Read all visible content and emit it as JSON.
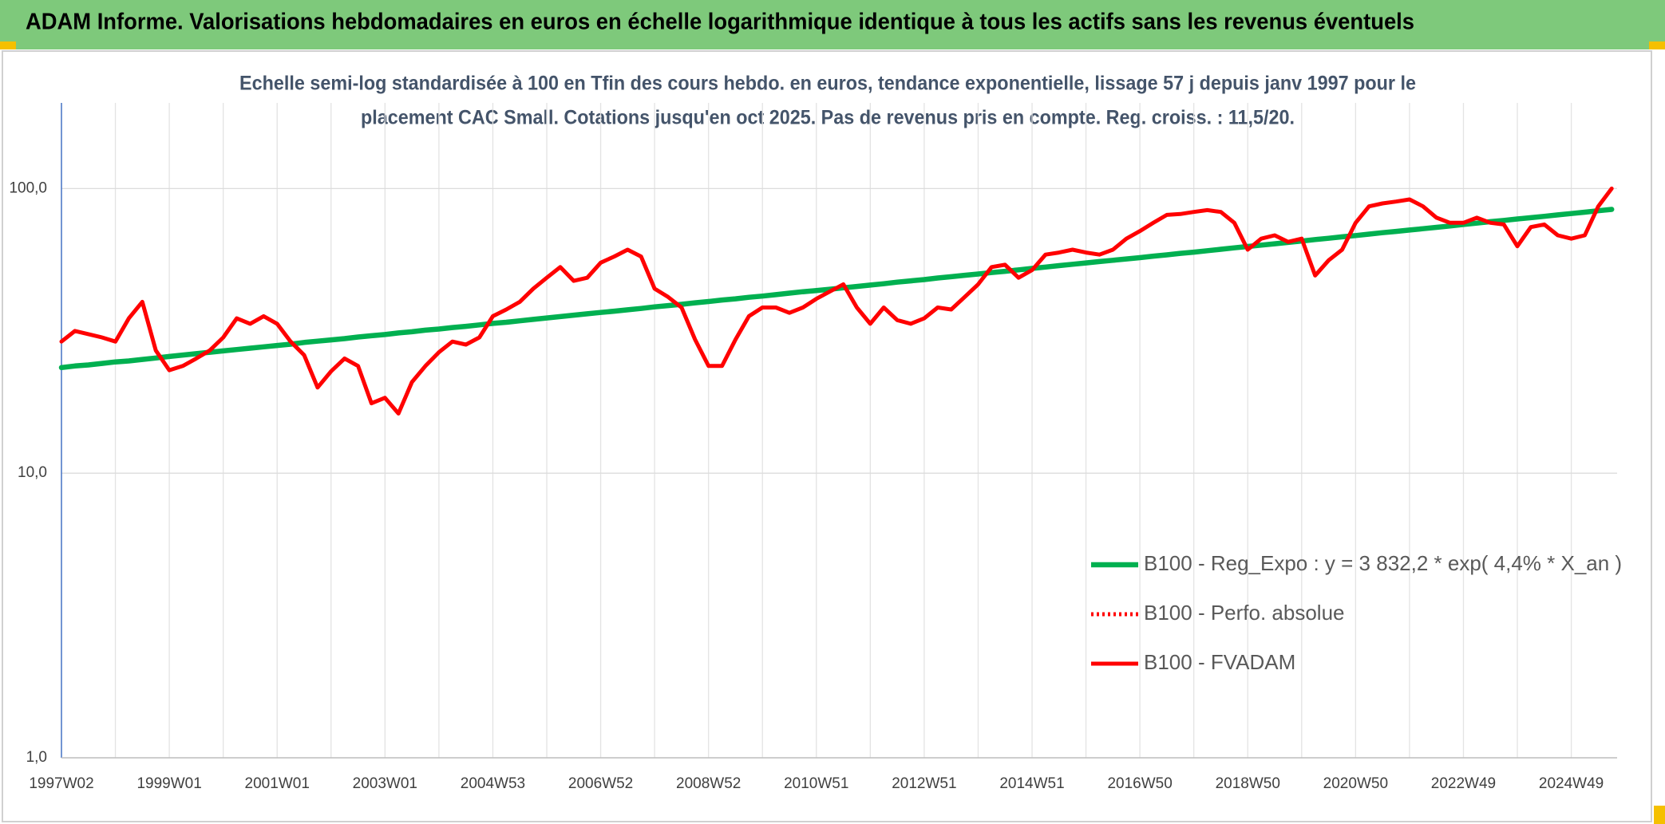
{
  "chart_data": {
    "type": "line",
    "title": "ADAM Informe. Valorisations hebdomadaires en euros en échelle logarithmique identique à tous les actifs sans les revenus éventuels",
    "subtitle": [
      "Echelle semi-log standardisée à 100 en Tfin des cours hebdo. en euros, tendance exponentielle, lissage 57 j depuis janv 1997 pour le",
      "placement CAC Small. Cotations jusqu'en oct 2025. Pas de revenus pris en compte. Reg. croiss. : 11,5/20."
    ],
    "log_scale": true,
    "grid": true,
    "legend_position": "lower right",
    "ylim": [
      1,
      200
    ],
    "yticks": [
      {
        "value": 1,
        "label": "1,0"
      },
      {
        "value": 10,
        "label": "10,0"
      },
      {
        "value": 100,
        "label": "100,0"
      }
    ],
    "categories": [
      "1997W02",
      null,
      null,
      null,
      null,
      null,
      null,
      null,
      "1999W01",
      null,
      null,
      null,
      null,
      null,
      null,
      null,
      "2001W01",
      null,
      null,
      null,
      null,
      null,
      null,
      null,
      "2003W01",
      null,
      null,
      null,
      null,
      null,
      null,
      null,
      "2004W53",
      null,
      null,
      null,
      null,
      null,
      null,
      null,
      "2006W52",
      null,
      null,
      null,
      null,
      null,
      null,
      null,
      "2008W52",
      null,
      null,
      null,
      null,
      null,
      null,
      null,
      "2010W51",
      null,
      null,
      null,
      null,
      null,
      null,
      null,
      "2012W51",
      null,
      null,
      null,
      null,
      null,
      null,
      null,
      "2014W51",
      null,
      null,
      null,
      null,
      null,
      null,
      null,
      "2016W50",
      null,
      null,
      null,
      null,
      null,
      null,
      null,
      "2018W50",
      null,
      null,
      null,
      null,
      null,
      null,
      null,
      "2020W50",
      null,
      null,
      null,
      null,
      null,
      null,
      null,
      "2022W49",
      null,
      null,
      null,
      null,
      null,
      null,
      null,
      "2024W49",
      null,
      null,
      null
    ],
    "series": [
      {
        "name": "B100 - Reg_Expo : y = 3 832,2 * exp( 4,4% *  X_an )",
        "color": "#00b050",
        "line_style": "solid",
        "values": [
          23.5,
          23.8,
          24.0,
          24.3,
          24.6,
          24.8,
          25.1,
          25.4,
          25.7,
          26.0,
          26.3,
          26.6,
          26.9,
          27.2,
          27.5,
          27.8,
          28.1,
          28.4,
          28.8,
          29.1,
          29.4,
          29.7,
          30.1,
          30.4,
          30.7,
          31.1,
          31.4,
          31.8,
          32.1,
          32.5,
          32.8,
          33.2,
          33.6,
          33.9,
          34.3,
          34.7,
          35.1,
          35.5,
          35.9,
          36.3,
          36.7,
          37.1,
          37.5,
          37.9,
          38.4,
          38.8,
          39.2,
          39.7,
          40.1,
          40.6,
          41.0,
          41.5,
          41.9,
          42.4,
          42.9,
          43.4,
          43.8,
          44.3,
          44.8,
          45.3,
          45.8,
          46.3,
          46.9,
          47.4,
          47.9,
          48.5,
          49.0,
          49.6,
          50.1,
          50.7,
          51.2,
          51.8,
          52.4,
          53.0,
          53.6,
          54.2,
          54.8,
          55.4,
          56.0,
          56.6,
          57.2,
          57.9,
          58.5,
          59.2,
          59.8,
          60.5,
          61.2,
          61.9,
          62.6,
          63.3,
          64.0,
          64.7,
          65.4,
          66.2,
          66.9,
          67.7,
          68.4,
          69.2,
          70.0,
          70.7,
          71.5,
          72.3,
          73.1,
          73.9,
          74.8,
          75.6,
          76.5,
          77.3,
          78.2,
          79.0,
          79.9,
          80.8,
          81.7,
          82.6,
          83.6,
          84.5
        ]
      },
      {
        "name": "B100 - Perfo. absolue",
        "color": "#ff0000",
        "line_style": "dotted",
        "values": [
          null,
          null,
          null,
          null,
          null,
          null,
          null,
          null,
          null,
          null,
          null,
          null,
          null,
          null,
          null,
          null,
          null,
          null,
          null,
          null,
          null,
          null,
          null,
          null,
          null,
          null,
          null,
          null,
          null,
          null,
          null,
          null,
          null,
          null,
          null,
          null,
          null,
          null,
          null,
          null,
          null,
          null,
          null,
          null,
          null,
          null,
          null,
          null,
          null,
          null,
          null,
          null,
          null,
          null,
          null,
          null,
          null,
          null,
          null,
          null,
          null,
          null,
          null,
          null,
          null,
          null,
          null,
          null,
          null,
          null,
          null,
          null,
          null,
          null,
          null,
          null,
          null,
          null,
          null,
          null,
          null,
          null,
          null,
          null,
          null,
          null,
          null,
          null,
          null,
          null,
          null,
          null,
          null,
          null,
          null,
          null,
          null,
          null,
          null,
          null,
          null,
          null,
          null,
          null,
          null,
          null,
          null,
          null,
          null,
          null,
          null,
          null,
          null,
          null,
          null,
          null
        ]
      },
      {
        "name": "B100 - FVADAM",
        "color": "#ff0000",
        "line_style": "solid",
        "values": [
          29.0,
          31.6,
          30.8,
          30.0,
          29.0,
          35.0,
          40.0,
          27.0,
          23.0,
          23.8,
          25.3,
          27.0,
          30.0,
          35.0,
          33.5,
          35.6,
          33.5,
          29.0,
          26.0,
          20.0,
          22.8,
          25.3,
          23.8,
          17.6,
          18.4,
          16.2,
          20.9,
          23.8,
          26.6,
          29.0,
          28.3,
          30.0,
          35.6,
          37.6,
          40.0,
          44.5,
          48.6,
          53.0,
          47.4,
          48.6,
          54.9,
          57.7,
          61.0,
          57.7,
          44.5,
          41.6,
          38.2,
          29.5,
          23.8,
          23.8,
          29.5,
          35.6,
          38.2,
          38.2,
          36.6,
          38.2,
          41.0,
          43.5,
          46.1,
          38.2,
          33.5,
          38.2,
          34.5,
          33.5,
          35.0,
          38.2,
          37.6,
          41.6,
          46.1,
          53.0,
          54.0,
          48.6,
          51.7,
          58.6,
          59.6,
          61.0,
          59.6,
          58.6,
          61.0,
          66.7,
          70.9,
          75.8,
          80.8,
          81.4,
          82.8,
          84.0,
          82.8,
          75.8,
          61.0,
          66.7,
          68.5,
          65.0,
          66.7,
          49.5,
          56.0,
          61.0,
          75.8,
          86.6,
          88.7,
          90.0,
          91.6,
          86.6,
          79.0,
          75.8,
          75.8,
          79.0,
          75.8,
          74.8,
          62.7,
          73.2,
          74.8,
          68.5,
          66.7,
          68.5,
          86.6,
          100.0
        ]
      }
    ]
  }
}
